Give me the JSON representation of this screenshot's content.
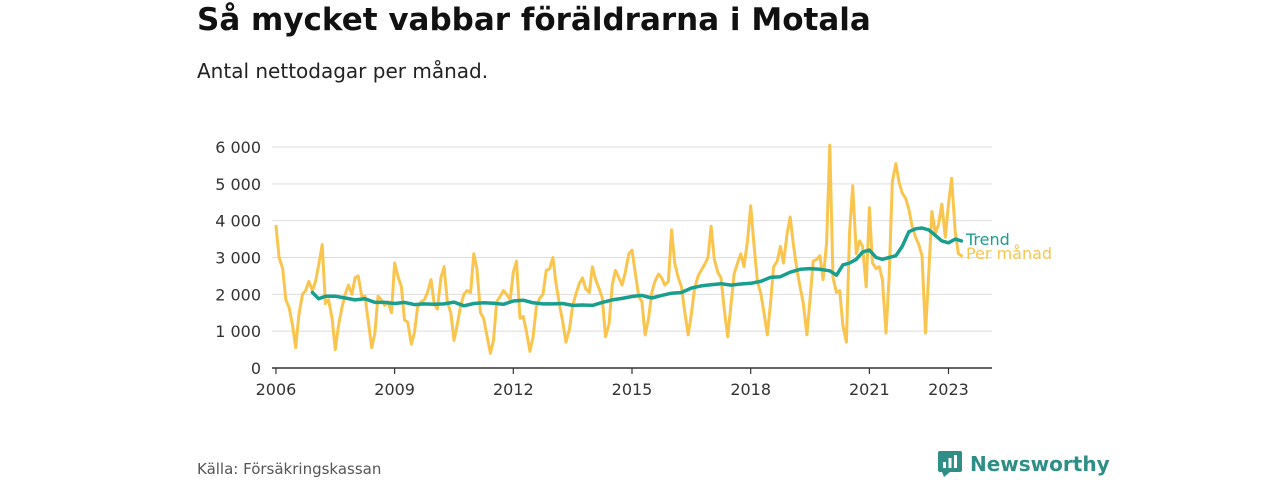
{
  "title": "Så mycket vabbar föräldrarna i Motala",
  "subtitle": "Antal nettodagar per månad.",
  "source": "Källa: Försäkringskassan",
  "brand": "Newsworthy",
  "chart_data": {
    "type": "line",
    "y_ticks": [
      "6 000",
      "5 000",
      "4 000",
      "3 000",
      "2 000",
      "1 000",
      "0"
    ],
    "x_ticks": [
      "2006",
      "2009",
      "2012",
      "2015",
      "2018",
      "2021",
      "2023"
    ],
    "ylim": [
      0,
      6000
    ],
    "xlim": [
      2005.9,
      2024.1
    ],
    "grid": true,
    "colors": {
      "monthly": "#f9c54e",
      "trend": "#1a9e8e"
    },
    "series": [
      {
        "name": "Per månad",
        "key": "monthly",
        "x": [
          2006.0,
          2006.08,
          2006.17,
          2006.25,
          2006.33,
          2006.42,
          2006.5,
          2006.58,
          2006.67,
          2006.75,
          2006.83,
          2006.92,
          2007.0,
          2007.08,
          2007.17,
          2007.25,
          2007.33,
          2007.42,
          2007.5,
          2007.58,
          2007.67,
          2007.75,
          2007.83,
          2007.92,
          2008.0,
          2008.08,
          2008.17,
          2008.25,
          2008.33,
          2008.42,
          2008.5,
          2008.58,
          2008.67,
          2008.75,
          2008.83,
          2008.92,
          2009.0,
          2009.08,
          2009.17,
          2009.25,
          2009.33,
          2009.42,
          2009.5,
          2009.58,
          2009.67,
          2009.75,
          2009.83,
          2009.92,
          2010.0,
          2010.08,
          2010.17,
          2010.25,
          2010.33,
          2010.42,
          2010.5,
          2010.58,
          2010.67,
          2010.75,
          2010.83,
          2010.92,
          2011.0,
          2011.08,
          2011.17,
          2011.25,
          2011.33,
          2011.42,
          2011.5,
          2011.58,
          2011.67,
          2011.75,
          2011.83,
          2011.92,
          2012.0,
          2012.08,
          2012.17,
          2012.25,
          2012.33,
          2012.42,
          2012.5,
          2012.58,
          2012.67,
          2012.75,
          2012.83,
          2012.92,
          2013.0,
          2013.08,
          2013.17,
          2013.25,
          2013.33,
          2013.42,
          2013.5,
          2013.58,
          2013.67,
          2013.75,
          2013.83,
          2013.92,
          2014.0,
          2014.08,
          2014.17,
          2014.25,
          2014.33,
          2014.42,
          2014.5,
          2014.58,
          2014.67,
          2014.75,
          2014.83,
          2014.92,
          2015.0,
          2015.08,
          2015.17,
          2015.25,
          2015.33,
          2015.42,
          2015.5,
          2015.58,
          2015.67,
          2015.75,
          2015.83,
          2015.92,
          2016.0,
          2016.08,
          2016.17,
          2016.25,
          2016.33,
          2016.42,
          2016.5,
          2016.58,
          2016.67,
          2016.75,
          2016.83,
          2016.92,
          2017.0,
          2017.08,
          2017.17,
          2017.25,
          2017.33,
          2017.42,
          2017.5,
          2017.58,
          2017.67,
          2017.75,
          2017.83,
          2017.92,
          2018.0,
          2018.08,
          2018.17,
          2018.25,
          2018.33,
          2018.42,
          2018.5,
          2018.58,
          2018.67,
          2018.75,
          2018.83,
          2018.92,
          2019.0,
          2019.08,
          2019.17,
          2019.25,
          2019.33,
          2019.42,
          2019.5,
          2019.58,
          2019.67,
          2019.75,
          2019.83,
          2019.92,
          2020.0,
          2020.08,
          2020.17,
          2020.25,
          2020.33,
          2020.42,
          2020.5,
          2020.58,
          2020.67,
          2020.75,
          2020.83,
          2020.92,
          2021.0,
          2021.08,
          2021.17,
          2021.25,
          2021.33,
          2021.42,
          2021.5,
          2021.58,
          2021.67,
          2021.75,
          2021.83,
          2021.92,
          2022.0,
          2022.08,
          2022.17,
          2022.25,
          2022.33,
          2022.42,
          2022.5,
          2022.58,
          2022.67,
          2022.75,
          2022.83,
          2022.92,
          2023.0,
          2023.08,
          2023.17,
          2023.25,
          2023.33
        ],
        "values": [
          3850,
          3000,
          2700,
          1850,
          1650,
          1150,
          550,
          1450,
          2000,
          2100,
          2350,
          2100,
          2350,
          2800,
          3350,
          1750,
          1850,
          1350,
          500,
          1150,
          1650,
          2000,
          2250,
          2000,
          2450,
          2500,
          1950,
          1950,
          1300,
          550,
          950,
          1950,
          1850,
          1700,
          1800,
          1500,
          2850,
          2500,
          2200,
          1300,
          1250,
          650,
          950,
          1650,
          1800,
          1850,
          2050,
          2400,
          1750,
          1600,
          2450,
          2750,
          1800,
          1500,
          750,
          1150,
          1700,
          2000,
          2100,
          2050,
          3100,
          2700,
          1500,
          1350,
          900,
          400,
          750,
          1800,
          1950,
          2100,
          2000,
          1850,
          2600,
          2900,
          1350,
          1400,
          1000,
          450,
          850,
          1650,
          1900,
          2000,
          2650,
          2700,
          3000,
          2300,
          1700,
          1250,
          700,
          1050,
          1700,
          2000,
          2300,
          2450,
          2150,
          2050,
          2750,
          2400,
          2150,
          1900,
          850,
          1200,
          2250,
          2650,
          2450,
          2250,
          2600,
          3100,
          3200,
          2600,
          1950,
          1800,
          900,
          1350,
          2050,
          2350,
          2550,
          2450,
          2250,
          2350,
          3750,
          2850,
          2450,
          2200,
          1550,
          900,
          1450,
          2150,
          2500,
          2650,
          2800,
          3000,
          3850,
          2950,
          2600,
          2450,
          1600,
          850,
          1700,
          2550,
          2850,
          3100,
          2750,
          3450,
          4400,
          3400,
          2350,
          2050,
          1550,
          900,
          1750,
          2750,
          2900,
          3300,
          2850,
          3650,
          4100,
          3350,
          2650,
          2200,
          1750,
          900,
          1850,
          2900,
          2950,
          3050,
          2400,
          3400,
          6050,
          2450,
          2050,
          2100,
          1150,
          700,
          3700,
          4950,
          3100,
          3450,
          3300,
          2200,
          4350,
          2850,
          2700,
          2750,
          2400,
          950,
          2450,
          5050,
          5550,
          5050,
          4750,
          4600,
          4300,
          3850,
          3550,
          3350,
          3050,
          950,
          2550,
          4250,
          3650,
          3900,
          4450,
          3550,
          4450,
          5150,
          3700,
          3100,
          3050
        ]
      },
      {
        "name": "Trend",
        "key": "trend",
        "x": [
          2006.92,
          2007.08,
          2007.25,
          2007.5,
          2007.75,
          2008.0,
          2008.25,
          2008.5,
          2008.75,
          2009.0,
          2009.25,
          2009.5,
          2009.75,
          2010.0,
          2010.25,
          2010.5,
          2010.75,
          2011.0,
          2011.25,
          2011.5,
          2011.75,
          2012.0,
          2012.25,
          2012.5,
          2012.75,
          2013.0,
          2013.25,
          2013.5,
          2013.75,
          2014.0,
          2014.25,
          2014.5,
          2014.75,
          2015.0,
          2015.25,
          2015.5,
          2015.75,
          2016.0,
          2016.25,
          2016.5,
          2016.75,
          2017.0,
          2017.25,
          2017.5,
          2017.75,
          2018.0,
          2018.25,
          2018.5,
          2018.75,
          2019.0,
          2019.25,
          2019.5,
          2019.75,
          2020.0,
          2020.17,
          2020.33,
          2020.5,
          2020.67,
          2020.83,
          2021.0,
          2021.17,
          2021.33,
          2021.5,
          2021.67,
          2021.83,
          2022.0,
          2022.17,
          2022.33,
          2022.5,
          2022.67,
          2022.83,
          2023.0,
          2023.17,
          2023.33
        ],
        "values": [
          2050,
          1880,
          1950,
          1950,
          1900,
          1850,
          1880,
          1780,
          1780,
          1750,
          1780,
          1720,
          1740,
          1730,
          1740,
          1790,
          1690,
          1750,
          1770,
          1760,
          1730,
          1820,
          1840,
          1770,
          1740,
          1740,
          1750,
          1700,
          1710,
          1700,
          1780,
          1850,
          1890,
          1940,
          1970,
          1900,
          1970,
          2030,
          2050,
          2170,
          2230,
          2260,
          2290,
          2250,
          2280,
          2300,
          2350,
          2460,
          2480,
          2600,
          2680,
          2700,
          2680,
          2640,
          2520,
          2800,
          2850,
          2950,
          3150,
          3200,
          3000,
          2950,
          3000,
          3050,
          3300,
          3700,
          3780,
          3800,
          3750,
          3600,
          3450,
          3400,
          3500,
          3450
        ]
      }
    ]
  }
}
